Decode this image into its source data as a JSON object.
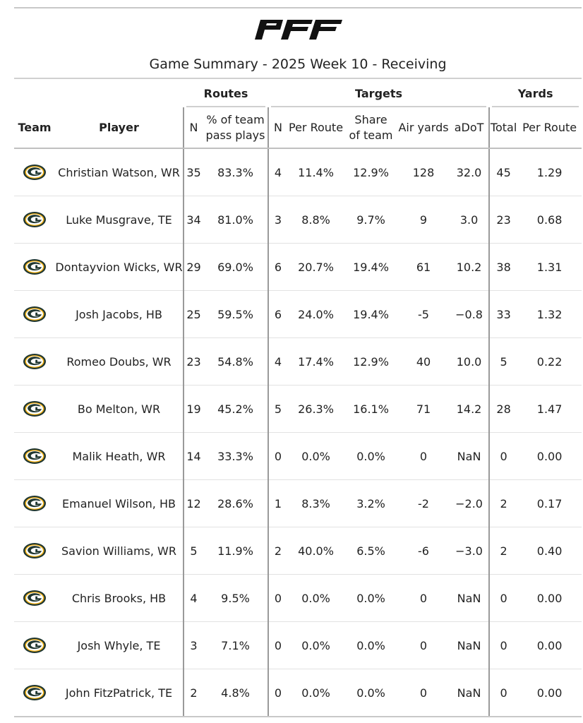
{
  "header": {
    "logo_text": "PFF",
    "title": "Game Summary - 2025 Week 10 - Receiving"
  },
  "groups": {
    "routes": "Routes",
    "targets": "Targets",
    "yards": "Yards"
  },
  "columns": {
    "team": "Team",
    "player": "Player",
    "routes_n": "N",
    "routes_pct_line1": "% of team",
    "routes_pct_line2": "pass plays",
    "targets_n": "N",
    "targets_per_route": "Per Route",
    "targets_share_line1": "Share",
    "targets_share_line2": "of team",
    "targets_air_yards": "Air yards",
    "targets_adot": "aDoT",
    "yards_total": "Total",
    "yards_per_route": "Per Route"
  },
  "colors": {
    "team_icon_green": "#203731",
    "team_icon_gold": "#FFB612"
  },
  "rows": [
    {
      "team_icon": "packers-logo-icon",
      "player": "Christian Watson, WR",
      "routes_n": "35",
      "routes_pct": "83.3%",
      "targets_n": "4",
      "targets_per_route": "11.4%",
      "targets_share": "12.9%",
      "air_yards": "128",
      "adot": "32.0",
      "yards_total": "45",
      "yards_per_route": "1.29"
    },
    {
      "team_icon": "packers-logo-icon",
      "player": "Luke Musgrave, TE",
      "routes_n": "34",
      "routes_pct": "81.0%",
      "targets_n": "3",
      "targets_per_route": "8.8%",
      "targets_share": "9.7%",
      "air_yards": "9",
      "adot": "3.0",
      "yards_total": "23",
      "yards_per_route": "0.68"
    },
    {
      "team_icon": "packers-logo-icon",
      "player": "Dontayvion Wicks, WR",
      "routes_n": "29",
      "routes_pct": "69.0%",
      "targets_n": "6",
      "targets_per_route": "20.7%",
      "targets_share": "19.4%",
      "air_yards": "61",
      "adot": "10.2",
      "yards_total": "38",
      "yards_per_route": "1.31"
    },
    {
      "team_icon": "packers-logo-icon",
      "player": "Josh Jacobs, HB",
      "routes_n": "25",
      "routes_pct": "59.5%",
      "targets_n": "6",
      "targets_per_route": "24.0%",
      "targets_share": "19.4%",
      "air_yards": "-5",
      "adot": "−0.8",
      "yards_total": "33",
      "yards_per_route": "1.32"
    },
    {
      "team_icon": "packers-logo-icon",
      "player": "Romeo Doubs, WR",
      "routes_n": "23",
      "routes_pct": "54.8%",
      "targets_n": "4",
      "targets_per_route": "17.4%",
      "targets_share": "12.9%",
      "air_yards": "40",
      "adot": "10.0",
      "yards_total": "5",
      "yards_per_route": "0.22"
    },
    {
      "team_icon": "packers-logo-icon",
      "player": "Bo Melton, WR",
      "routes_n": "19",
      "routes_pct": "45.2%",
      "targets_n": "5",
      "targets_per_route": "26.3%",
      "targets_share": "16.1%",
      "air_yards": "71",
      "adot": "14.2",
      "yards_total": "28",
      "yards_per_route": "1.47"
    },
    {
      "team_icon": "packers-logo-icon",
      "player": "Malik Heath, WR",
      "routes_n": "14",
      "routes_pct": "33.3%",
      "targets_n": "0",
      "targets_per_route": "0.0%",
      "targets_share": "0.0%",
      "air_yards": "0",
      "adot": "NaN",
      "yards_total": "0",
      "yards_per_route": "0.00"
    },
    {
      "team_icon": "packers-logo-icon",
      "player": "Emanuel Wilson, HB",
      "routes_n": "12",
      "routes_pct": "28.6%",
      "targets_n": "1",
      "targets_per_route": "8.3%",
      "targets_share": "3.2%",
      "air_yards": "-2",
      "adot": "−2.0",
      "yards_total": "2",
      "yards_per_route": "0.17"
    },
    {
      "team_icon": "packers-logo-icon",
      "player": "Savion Williams, WR",
      "routes_n": "5",
      "routes_pct": "11.9%",
      "targets_n": "2",
      "targets_per_route": "40.0%",
      "targets_share": "6.5%",
      "air_yards": "-6",
      "adot": "−3.0",
      "yards_total": "2",
      "yards_per_route": "0.40"
    },
    {
      "team_icon": "packers-logo-icon",
      "player": "Chris Brooks, HB",
      "routes_n": "4",
      "routes_pct": "9.5%",
      "targets_n": "0",
      "targets_per_route": "0.0%",
      "targets_share": "0.0%",
      "air_yards": "0",
      "adot": "NaN",
      "yards_total": "0",
      "yards_per_route": "0.00"
    },
    {
      "team_icon": "packers-logo-icon",
      "player": "Josh Whyle, TE",
      "routes_n": "3",
      "routes_pct": "7.1%",
      "targets_n": "0",
      "targets_per_route": "0.0%",
      "targets_share": "0.0%",
      "air_yards": "0",
      "adot": "NaN",
      "yards_total": "0",
      "yards_per_route": "0.00"
    },
    {
      "team_icon": "packers-logo-icon",
      "player": "John FitzPatrick, TE",
      "routes_n": "2",
      "routes_pct": "4.8%",
      "targets_n": "0",
      "targets_per_route": "0.0%",
      "targets_share": "0.0%",
      "air_yards": "0",
      "adot": "NaN",
      "yards_total": "0",
      "yards_per_route": "0.00"
    }
  ]
}
